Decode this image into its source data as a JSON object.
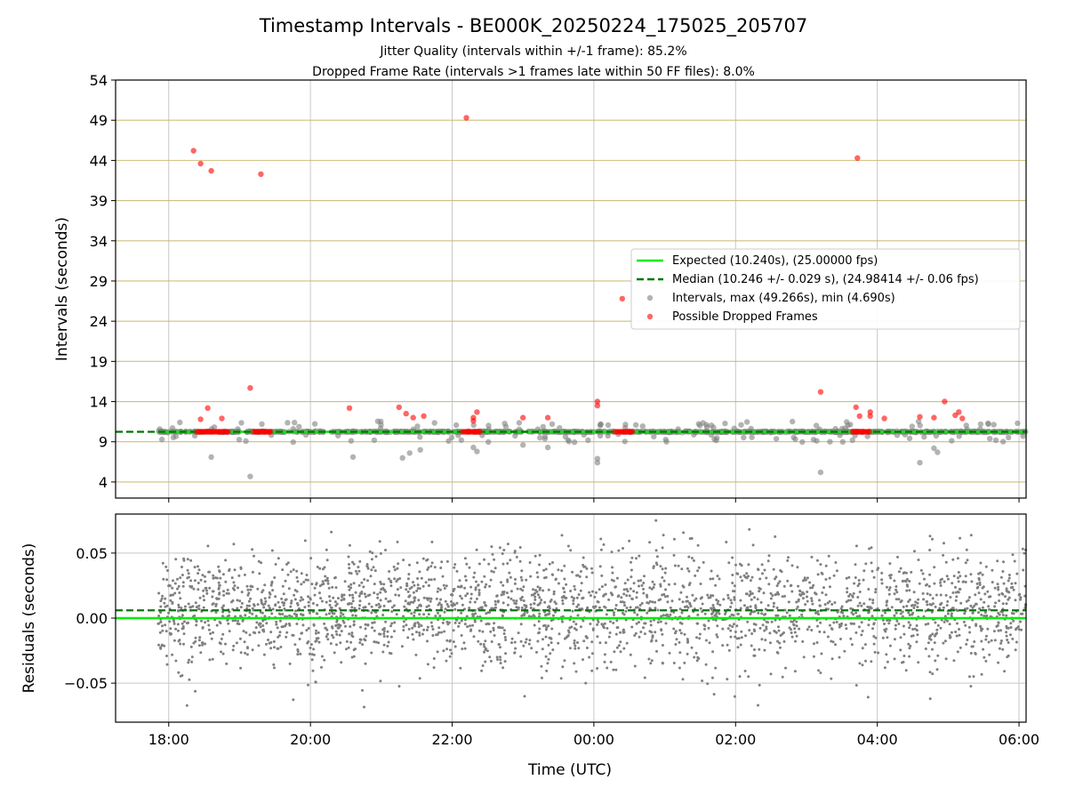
{
  "figure": {
    "title": "Timestamp Intervals - BE000K_20250224_175025_205707",
    "subtitle_line1": "Jitter Quality (intervals within +/-1 frame): 85.2%",
    "subtitle_line2": "Dropped Frame Rate (intervals >1 frames late within 50 FF files): 8.0%"
  },
  "colors": {
    "expected": "#00ee00",
    "median": "#007700",
    "intervals": "#808080",
    "dropped": "#ff0000",
    "gridline": "#c8b464",
    "vgrid": "#c8c8c8"
  },
  "chart_data": [
    {
      "type": "scatter",
      "name": "intervals-panel",
      "ylabel": "Intervals (seconds)",
      "xlabel": "",
      "xlim_hours": [
        17.25,
        30.1
      ],
      "ylim": [
        2,
        54
      ],
      "yticks": [
        4,
        9,
        14,
        19,
        24,
        29,
        34,
        39,
        44,
        49,
        54
      ],
      "grid": true,
      "legend_position": "center-right",
      "legend": [
        "Expected (10.240s), (25.00000 fps)",
        "Median (10.246 +/- 0.029 s), (24.98414 +/- 0.06 fps)",
        "Intervals, max (49.266s), min (4.690s)",
        "Possible Dropped Frames"
      ],
      "expected_interval": 10.24,
      "median_interval": 10.246,
      "interval_range": [
        4.69,
        49.266
      ],
      "data_span_hours": [
        17.85,
        30.1
      ],
      "dropped_points": [
        [
          18.35,
          45.2
        ],
        [
          18.45,
          43.6
        ],
        [
          18.6,
          42.7
        ],
        [
          19.3,
          42.3
        ],
        [
          22.2,
          49.3
        ],
        [
          27.72,
          44.3
        ],
        [
          24.4,
          26.8
        ],
        [
          19.15,
          15.7
        ],
        [
          27.2,
          15.2
        ],
        [
          18.55,
          13.2
        ],
        [
          20.55,
          13.2
        ],
        [
          21.25,
          13.3
        ],
        [
          21.35,
          12.5
        ],
        [
          21.45,
          12.0
        ],
        [
          21.6,
          12.2
        ],
        [
          22.3,
          12.0
        ],
        [
          22.35,
          12.7
        ],
        [
          22.3,
          11.6
        ],
        [
          23.0,
          12.0
        ],
        [
          23.35,
          12.0
        ],
        [
          24.05,
          14.0
        ],
        [
          24.05,
          13.5
        ],
        [
          27.7,
          13.3
        ],
        [
          27.75,
          12.2
        ],
        [
          27.9,
          12.7
        ],
        [
          27.9,
          12.2
        ],
        [
          28.1,
          11.9
        ],
        [
          28.6,
          12.1
        ],
        [
          28.8,
          12.0
        ],
        [
          28.95,
          14.0
        ],
        [
          29.1,
          12.3
        ],
        [
          29.15,
          12.7
        ],
        [
          29.2,
          11.9
        ],
        [
          18.45,
          11.8
        ],
        [
          18.75,
          11.9
        ]
      ],
      "dropped_clusters": [
        [
          18.4,
          18.85
        ],
        [
          19.2,
          19.45
        ],
        [
          22.15,
          22.4
        ],
        [
          24.3,
          24.55
        ],
        [
          27.65,
          27.9
        ]
      ],
      "low_outliers": [
        [
          19.15,
          4.69
        ],
        [
          27.2,
          5.2
        ],
        [
          18.6,
          7.1
        ],
        [
          20.6,
          7.1
        ],
        [
          21.3,
          7.0
        ],
        [
          21.4,
          7.6
        ],
        [
          22.35,
          7.8
        ],
        [
          24.05,
          6.4
        ],
        [
          24.05,
          6.9
        ],
        [
          28.6,
          6.4
        ],
        [
          28.85,
          7.7
        ],
        [
          28.8,
          8.2
        ],
        [
          22.3,
          8.3
        ],
        [
          23.0,
          8.6
        ],
        [
          23.35,
          8.3
        ],
        [
          21.55,
          8.0
        ]
      ]
    },
    {
      "type": "scatter",
      "name": "residuals-panel",
      "ylabel": "Residuals (seconds)",
      "xlabel": "Time (UTC)",
      "xlim_hours": [
        17.25,
        30.1
      ],
      "ylim": [
        -0.08,
        0.08
      ],
      "yticks": [
        -0.05,
        0.0,
        0.05
      ],
      "ytick_labels": [
        "−0.05",
        "0.00",
        "0.05"
      ],
      "xticks_hours": [
        18,
        20,
        22,
        24,
        26,
        28,
        30
      ],
      "xtick_labels": [
        "18:00",
        "20:00",
        "22:00",
        "00:00",
        "02:00",
        "04:00",
        "06:00"
      ],
      "expected_residual": 0.0,
      "median_residual": 0.006,
      "residual_spread_sd": 0.022,
      "approx_point_count": 2700,
      "grid": true
    }
  ]
}
